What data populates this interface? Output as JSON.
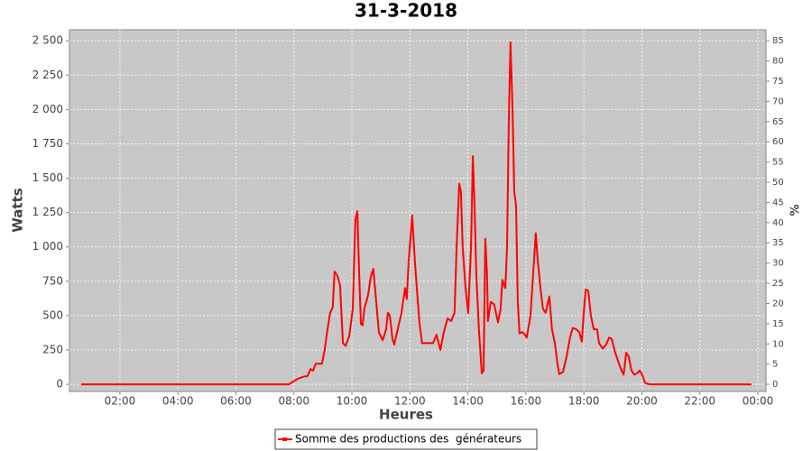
{
  "chart_data": {
    "type": "line",
    "title": "31-3-2018",
    "x_label": "Heures",
    "y_label": "Watts",
    "y2_label": "%",
    "xlim": [
      0.26,
      24.28
    ],
    "xticks": [
      {
        "value": 2,
        "label": "02:00"
      },
      {
        "value": 4,
        "label": "04:00"
      },
      {
        "value": 6,
        "label": "06:00"
      },
      {
        "value": 8,
        "label": "08:00"
      },
      {
        "value": 10,
        "label": "10:00"
      },
      {
        "value": 12,
        "label": "12:00"
      },
      {
        "value": 14,
        "label": "14:00"
      },
      {
        "value": 16,
        "label": "16:00"
      },
      {
        "value": 18,
        "label": "18:00"
      },
      {
        "value": 20,
        "label": "20:00"
      },
      {
        "value": 22,
        "label": "22:00"
      },
      {
        "value": 24,
        "label": "00:00"
      }
    ],
    "ylim": [
      -52,
      2580
    ],
    "yticks": [
      0,
      250,
      500,
      750,
      {
        "value": 1000,
        "label": "1 000"
      },
      {
        "value": 1250,
        "label": "1 250"
      },
      {
        "value": 1500,
        "label": "1 500"
      },
      {
        "value": 1750,
        "label": "1 750"
      },
      {
        "value": 2000,
        "label": "2 000"
      },
      {
        "value": 2250,
        "label": "2 250"
      },
      {
        "value": 2500,
        "label": "2 500"
      }
    ],
    "y2lim": [
      -1.77,
      87.72
    ],
    "y2ticks": [
      0,
      5,
      10,
      15,
      20,
      25,
      30,
      35,
      40,
      45,
      50,
      55,
      60,
      65,
      70,
      75,
      80,
      85
    ],
    "grid": true,
    "legend": "bottom",
    "x": [
      0.66,
      7.82,
      8.13,
      8.32,
      8.47,
      8.57,
      8.66,
      8.75,
      8.97,
      9.06,
      9.16,
      9.25,
      9.34,
      9.4,
      9.5,
      9.59,
      9.69,
      9.78,
      9.91,
      10.03,
      10.12,
      10.19,
      10.25,
      10.31,
      10.37,
      10.43,
      10.56,
      10.65,
      10.74,
      10.84,
      10.93,
      11.06,
      11.18,
      11.24,
      11.31,
      11.4,
      11.46,
      11.58,
      11.71,
      11.83,
      11.89,
      11.96,
      12.08,
      12.17,
      12.24,
      12.33,
      12.42,
      12.8,
      12.92,
      13.05,
      13.17,
      13.3,
      13.42,
      13.54,
      13.61,
      13.7,
      13.76,
      13.82,
      13.92,
      14.01,
      14.11,
      14.17,
      14.23,
      14.29,
      14.38,
      14.48,
      14.54,
      14.6,
      14.66,
      14.69,
      14.79,
      14.91,
      15.04,
      15.13,
      15.19,
      15.29,
      15.35,
      15.41,
      15.47,
      15.54,
      15.6,
      15.66,
      15.72,
      15.78,
      15.88,
      15.97,
      16.03,
      16.16,
      16.25,
      16.34,
      16.41,
      16.5,
      16.59,
      16.68,
      16.81,
      16.9,
      17.0,
      17.09,
      17.15,
      17.28,
      17.4,
      17.53,
      17.62,
      17.74,
      17.84,
      17.93,
      17.99,
      18.06,
      18.15,
      18.24,
      18.34,
      18.46,
      18.52,
      18.65,
      18.77,
      18.87,
      18.96,
      19.08,
      19.21,
      19.3,
      19.37,
      19.46,
      19.55,
      19.64,
      19.74,
      19.83,
      19.92,
      20.01,
      20.11,
      20.26,
      23.78
    ],
    "series": [
      {
        "name": "Somme des productions des  générateurs",
        "color": "#ff0000",
        "values": [
          0,
          0,
          40,
          55,
          60,
          110,
          100,
          150,
          150,
          250,
          400,
          520,
          560,
          820,
          790,
          720,
          300,
          280,
          350,
          550,
          1200,
          1260,
          800,
          440,
          430,
          550,
          650,
          780,
          840,
          600,
          380,
          320,
          400,
          520,
          500,
          330,
          290,
          400,
          520,
          700,
          620,
          900,
          1230,
          900,
          700,
          450,
          300,
          300,
          360,
          250,
          380,
          480,
          460,
          520,
          1000,
          1460,
          1400,
          1000,
          700,
          520,
          1000,
          1660,
          1300,
          800,
          400,
          80,
          100,
          1060,
          800,
          460,
          600,
          580,
          450,
          550,
          760,
          700,
          1000,
          1900,
          2490,
          2000,
          1400,
          1300,
          600,
          370,
          380,
          360,
          340,
          500,
          800,
          1100,
          900,
          700,
          550,
          520,
          640,
          400,
          300,
          150,
          75,
          90,
          200,
          350,
          410,
          400,
          380,
          310,
          500,
          690,
          680,
          500,
          400,
          400,
          300,
          260,
          290,
          340,
          330,
          230,
          150,
          100,
          70,
          230,
          200,
          100,
          70,
          80,
          100,
          70,
          10,
          0,
          0
        ]
      }
    ]
  }
}
